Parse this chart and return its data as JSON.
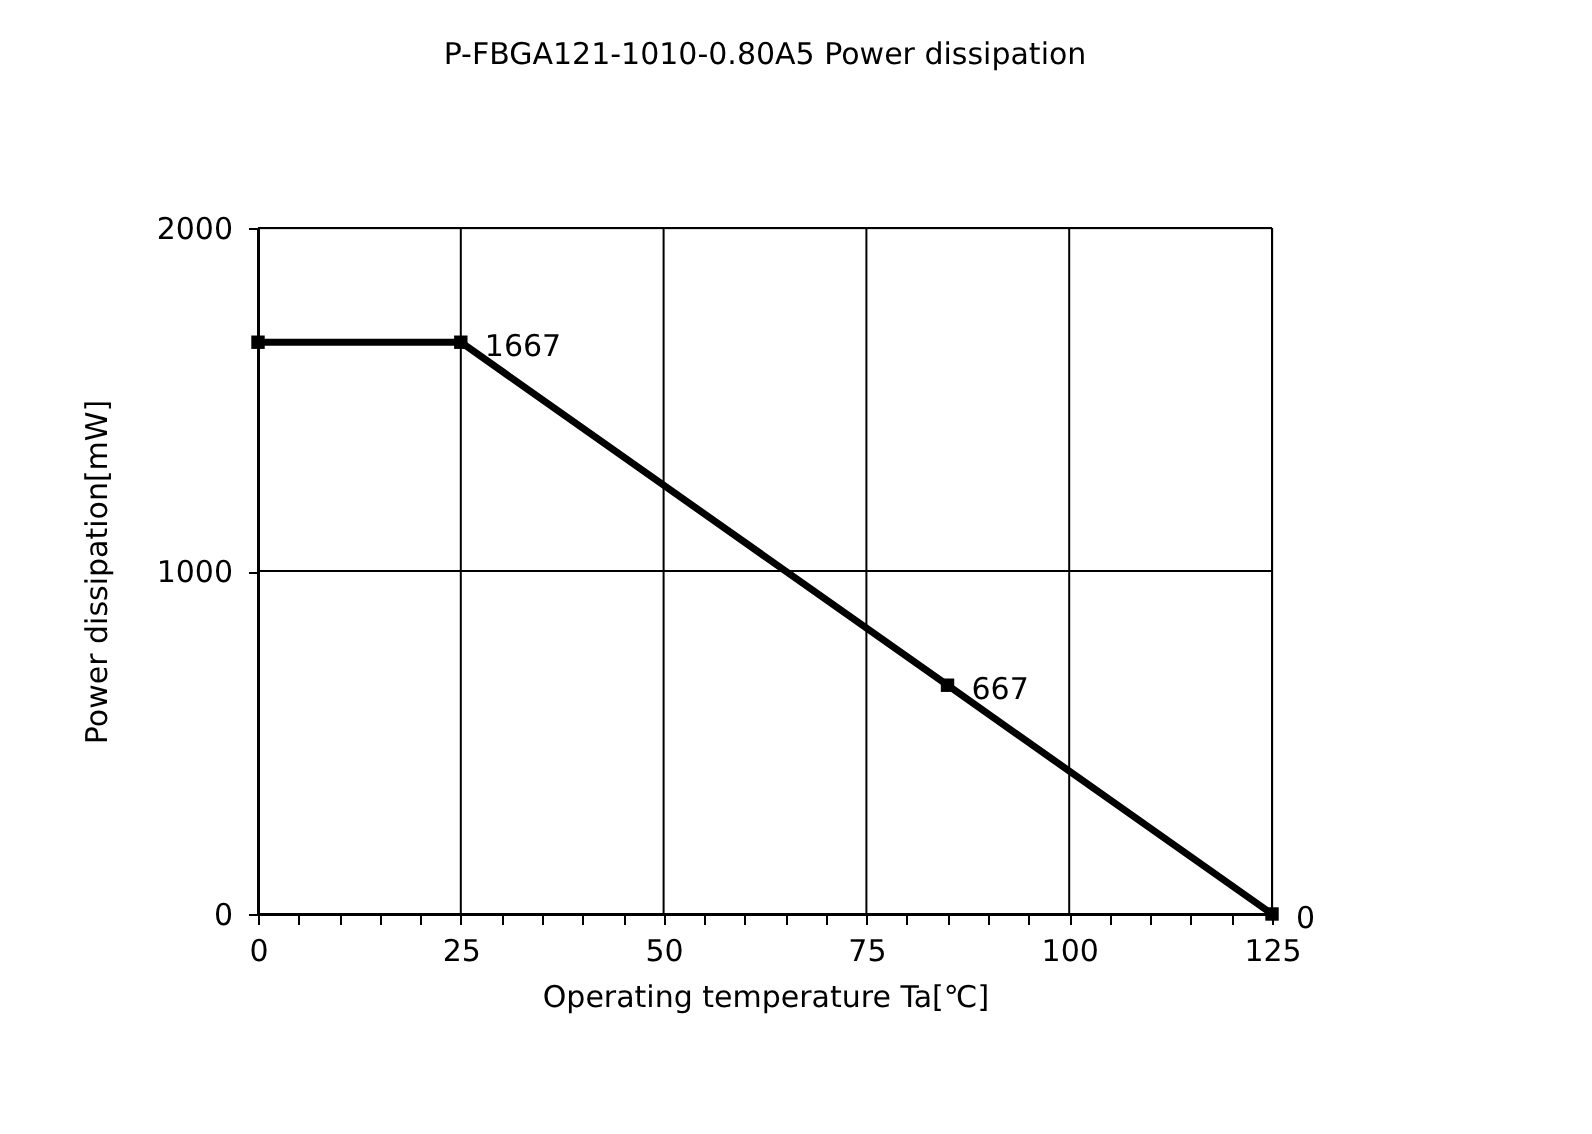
{
  "chart_data": {
    "type": "line",
    "title": "P-FBGA121-1010-0.80A5 Power dissipation",
    "xlabel": "Operating temperature  Ta[℃]",
    "ylabel": "Power dissipation[mW]",
    "x": [
      0,
      25,
      85,
      125
    ],
    "series": [
      {
        "color": "#000000",
        "values": [
          1667,
          1667,
          667,
          0
        ],
        "value_labels": [
          null,
          "1667",
          "667",
          "0"
        ]
      }
    ],
    "xlim": [
      0,
      125
    ],
    "ylim": [
      0,
      2000
    ],
    "xticks": [
      0,
      {
        "value": 5,
        "label": null
      },
      {
        "value": 10,
        "label": null
      },
      {
        "value": 15,
        "label": null
      },
      {
        "value": 20,
        "label": null
      },
      25,
      {
        "value": 30,
        "label": null
      },
      {
        "value": 35,
        "label": null
      },
      {
        "value": 40,
        "label": null
      },
      {
        "value": 45,
        "label": null
      },
      50,
      {
        "value": 55,
        "label": null
      },
      {
        "value": 60,
        "label": null
      },
      {
        "value": 65,
        "label": null
      },
      {
        "value": 70,
        "label": null
      },
      75,
      {
        "value": 80,
        "label": null
      },
      {
        "value": 85,
        "label": null
      },
      {
        "value": 90,
        "label": null
      },
      {
        "value": 95,
        "label": null
      },
      100,
      {
        "value": 105,
        "label": null
      },
      {
        "value": 110,
        "label": null
      },
      {
        "value": 115,
        "label": null
      },
      {
        "value": 120,
        "label": null
      },
      125
    ],
    "yticks": [
      0,
      1000,
      2000
    ],
    "grid": true,
    "marker": "square",
    "line_style": "solid"
  }
}
